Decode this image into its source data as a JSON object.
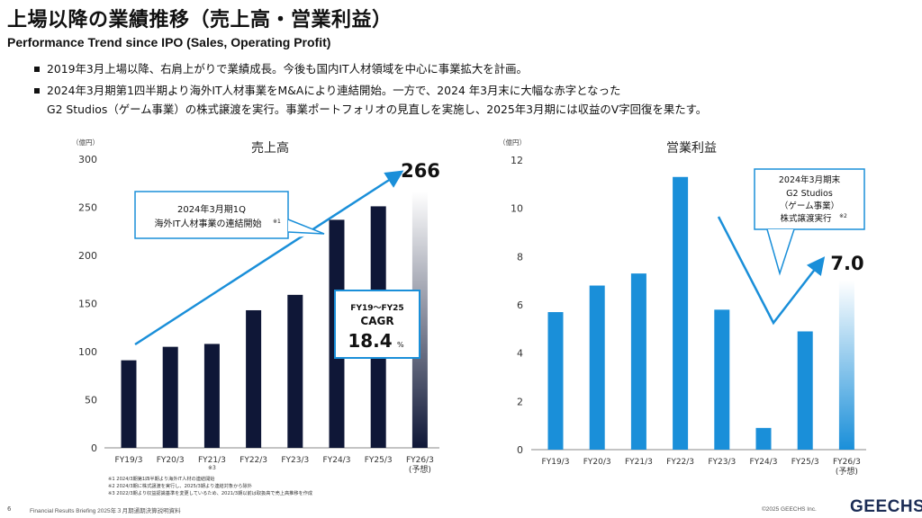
{
  "header": {
    "title": "上場以降の業績推移（売上高・営業利益）",
    "subtitle": "Performance Trend since IPO (Sales, Operating Profit)"
  },
  "bullets": [
    {
      "lines": [
        "2019年3月上場以降、右肩上がりで業績成長。今後も国内IT人材領域を中心に事業拡大を計画。"
      ]
    },
    {
      "lines": [
        "2024年3月期第1四半期より海外IT人材事業をM&Aにより連結開始。一方で、2024 年3月末に大幅な赤字となった",
        "G2 Studios（ゲーム事業）の株式譲渡を実行。事業ポートフォリオの見直しを実施し、2025年3月期には収益のV字回復を果たす。"
      ]
    }
  ],
  "chart_data": [
    {
      "type": "bar",
      "title": "売上高",
      "unit": "（億円）",
      "categories": [
        "FY19/3",
        "FY20/3",
        "FY21/3",
        "FY22/3",
        "FY23/3",
        "FY24/3",
        "FY25/3",
        "FY26/3"
      ],
      "category_sub": [
        "",
        "",
        "※3",
        "",
        "",
        "",
        "",
        "(予想)"
      ],
      "values": [
        91,
        105,
        108,
        143,
        159,
        237,
        251,
        266
      ],
      "forecast_index": 7,
      "ylim": [
        0,
        300
      ],
      "yticks": [
        0,
        50,
        100,
        150,
        200,
        250,
        300
      ],
      "bar_color": "#0f1737",
      "forecast_label": "266",
      "callout": {
        "lines": [
          "2024年3月期1Q",
          "海外IT人材事業の連結開始"
        ],
        "note": "※1"
      },
      "cagr": {
        "period": "FY19～FY25",
        "label": "CAGR",
        "value": "18.4",
        "unit": "%"
      }
    },
    {
      "type": "bar",
      "title": "営業利益",
      "unit": "（億円）",
      "categories": [
        "FY19/3",
        "FY20/3",
        "FY21/3",
        "FY22/3",
        "FY23/3",
        "FY24/3",
        "FY25/3",
        "FY26/3"
      ],
      "category_sub": [
        "",
        "",
        "",
        "",
        "",
        "",
        "",
        "(予想)"
      ],
      "values": [
        5.7,
        6.8,
        7.3,
        11.3,
        5.8,
        0.9,
        4.9,
        7.0
      ],
      "forecast_index": 7,
      "ylim": [
        0,
        12
      ],
      "yticks": [
        0,
        2,
        4,
        6,
        8,
        10,
        12
      ],
      "bar_color": "#1a8fd9",
      "forecast_label": "7.0",
      "callout": {
        "lines": [
          "2024年3月期末",
          "G2 Studios",
          "（ゲーム事業）",
          "株式譲渡実行"
        ],
        "note": "※2"
      }
    }
  ],
  "footnotes": [
    "※1 2024/3期第1四半期より海外IT人材の連結開始",
    "※2 2024/3期に株式譲渡を実行し、2025/3期より連結対象から除外",
    "※3 2022/3期より収益認識基準を変更しているため、2021/3期以前は取扱高で売上高推移を作成"
  ],
  "footer": {
    "page": "6",
    "text": "Financial Results Briefing 2025年３月期通期決算説明資料",
    "copyright": "©2025 GEECHS Inc.",
    "logo": "GEECHS"
  },
  "colors": {
    "accent": "#1a8fd9",
    "navy": "#0f1737"
  }
}
